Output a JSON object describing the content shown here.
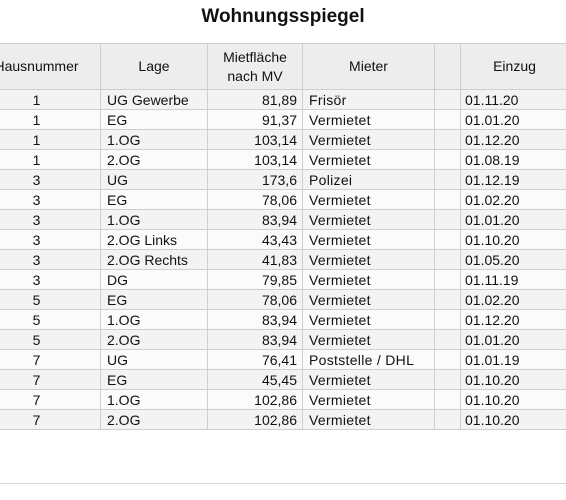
{
  "title": "Wohnungsspiegel",
  "headers": {
    "hausnummer": "Hausnummer",
    "lage": "Lage",
    "mietflaeche_1": "Mietfläche",
    "mietflaeche_2": "nach MV",
    "mieter": "Mieter",
    "einzug": "Einzug"
  },
  "rows": [
    {
      "nr": "1",
      "lage": "UG Gewerbe",
      "flaeche": "81,89",
      "mieter": "Frisör",
      "einzug": "01.11.20"
    },
    {
      "nr": "1",
      "lage": "EG",
      "flaeche": "91,37",
      "mieter": "Vermietet",
      "einzug": "01.01.20"
    },
    {
      "nr": "1",
      "lage": "1.OG",
      "flaeche": "103,14",
      "mieter": "Vermietet",
      "einzug": "01.12.20"
    },
    {
      "nr": "1",
      "lage": "2.OG",
      "flaeche": "103,14",
      "mieter": "Vermietet",
      "einzug": "01.08.19"
    },
    {
      "nr": "3",
      "lage": "UG",
      "flaeche": "173,6",
      "mieter": "Polizei",
      "einzug": "01.12.19"
    },
    {
      "nr": "3",
      "lage": "EG",
      "flaeche": "78,06",
      "mieter": "Vermietet",
      "einzug": "01.02.20"
    },
    {
      "nr": "3",
      "lage": "1.OG",
      "flaeche": "83,94",
      "mieter": "Vermietet",
      "einzug": "01.01.20"
    },
    {
      "nr": "3",
      "lage": "2.OG Links",
      "flaeche": "43,43",
      "mieter": "Vermietet",
      "einzug": "01.10.20"
    },
    {
      "nr": "3",
      "lage": "2.OG Rechts",
      "flaeche": "41,83",
      "mieter": "Vermietet",
      "einzug": "01.05.20"
    },
    {
      "nr": "3",
      "lage": "DG",
      "flaeche": "79,85",
      "mieter": "Vermietet",
      "einzug": "01.11.19"
    },
    {
      "nr": "5",
      "lage": "EG",
      "flaeche": "78,06",
      "mieter": "Vermietet",
      "einzug": "01.02.20"
    },
    {
      "nr": "5",
      "lage": "1.OG",
      "flaeche": "83,94",
      "mieter": "Vermietet",
      "einzug": "01.12.20"
    },
    {
      "nr": "5",
      "lage": "2.OG",
      "flaeche": "83,94",
      "mieter": "Vermietet",
      "einzug": "01.01.20"
    },
    {
      "nr": "7",
      "lage": "UG",
      "flaeche": "76,41",
      "mieter": "Poststelle / DHL",
      "einzug": "01.01.19"
    },
    {
      "nr": "7",
      "lage": "EG",
      "flaeche": "45,45",
      "mieter": "Vermietet",
      "einzug": "01.10.20"
    },
    {
      "nr": "7",
      "lage": "1.OG",
      "flaeche": "102,86",
      "mieter": "Vermietet",
      "einzug": "01.10.20"
    },
    {
      "nr": "7",
      "lage": "2.OG",
      "flaeche": "102,86",
      "mieter": "Vermietet",
      "einzug": "01.10.20"
    }
  ]
}
